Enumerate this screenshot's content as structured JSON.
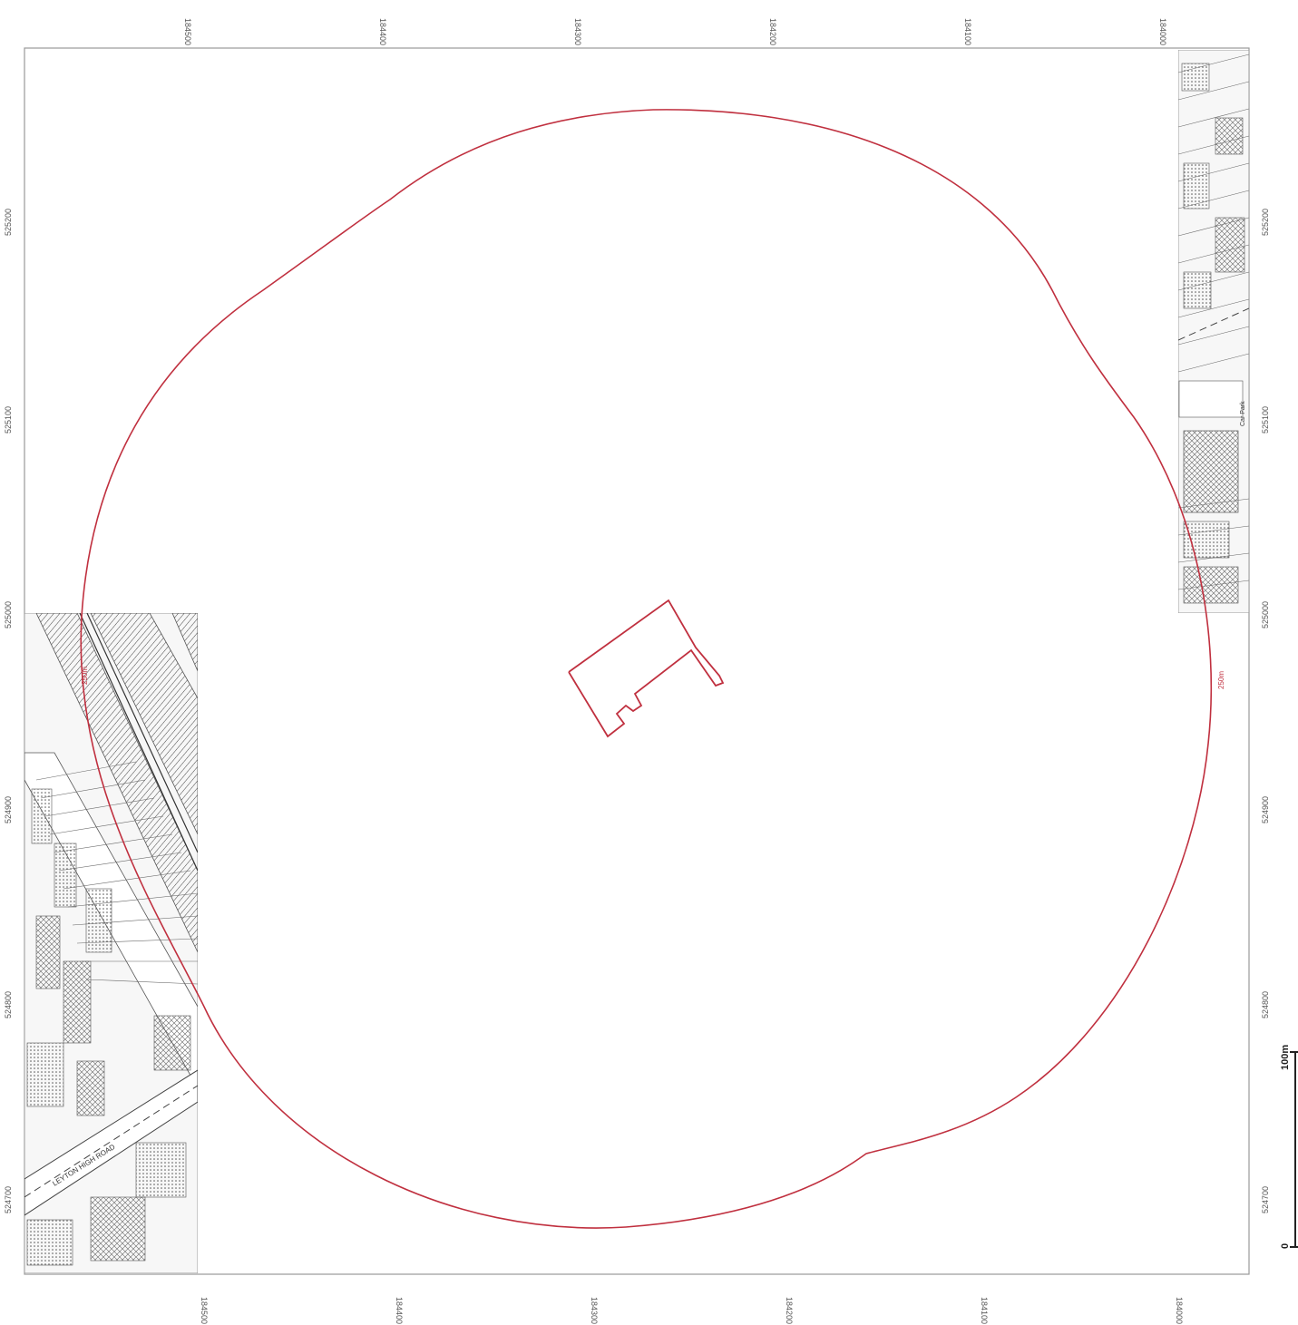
{
  "map": {
    "frame": {
      "stroke": "#9a9a9a",
      "background": "#ffffff"
    },
    "grid_labels": {
      "northing_top": [
        "184500",
        "184400",
        "184300",
        "184200",
        "184100",
        "184000"
      ],
      "northing_bottom": [
        "184500",
        "184400",
        "184300",
        "184200",
        "184100",
        "184000"
      ],
      "easting_left": [
        "525200",
        "525100",
        "525000",
        "524900",
        "524800",
        "524700"
      ],
      "easting_right": [
        "525200",
        "525100",
        "525000",
        "524900",
        "524800",
        "524700"
      ]
    },
    "buffer": {
      "color": "#c0303f",
      "label_left": "250m",
      "label_right": "250m"
    },
    "site_outline": {
      "color": "#c0303f"
    },
    "scale_bar": {
      "zero_label": "0",
      "end_label": "100m"
    },
    "basemap_left": {
      "road_label": "LEYTON HIGH ROAD"
    },
    "basemap_right": {
      "label": "Car Park"
    }
  }
}
